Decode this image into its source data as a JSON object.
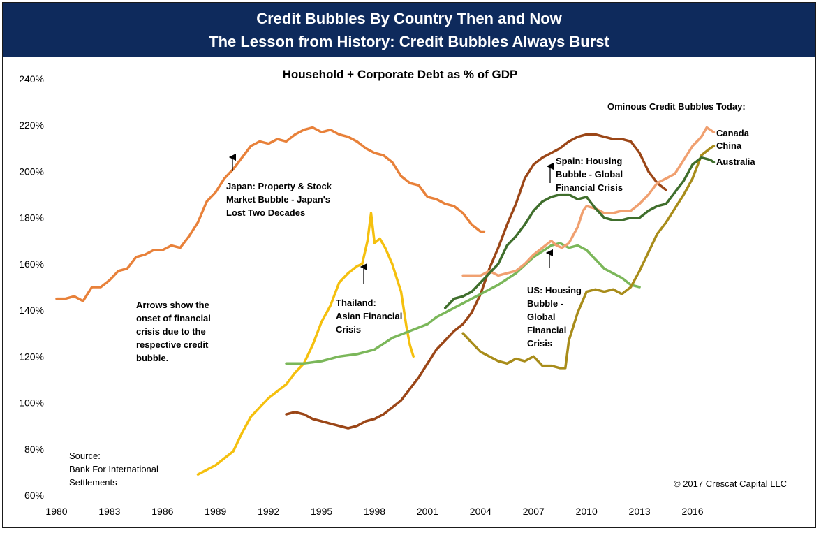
{
  "header": {
    "line1": "Credit Bubbles By Country Then and Now",
    "line2": "The Lesson from History: Credit Bubbles Always Burst"
  },
  "chart_data": {
    "type": "line",
    "title": "Household + Corporate Debt as % of GDP",
    "xlabel": "",
    "ylabel": "",
    "xlim": [
      1980,
      2017.5
    ],
    "ylim": [
      60,
      240
    ],
    "x_ticks": [
      "1980",
      "1983",
      "1986",
      "1989",
      "1992",
      "1995",
      "1998",
      "2001",
      "2004",
      "2007",
      "2010",
      "2013",
      "2016"
    ],
    "y_ticks": [
      "60%",
      "80%",
      "100%",
      "120%",
      "140%",
      "160%",
      "180%",
      "200%",
      "220%",
      "240%"
    ],
    "grid": false,
    "legend": "none",
    "series": [
      {
        "name": "",
        "color": "#e8813a",
        "points": [
          [
            1980,
            145
          ],
          [
            1980.5,
            145
          ],
          [
            1981,
            146
          ],
          [
            1981.5,
            144
          ],
          [
            1982,
            150
          ],
          [
            1982.5,
            150
          ],
          [
            1983,
            153
          ],
          [
            1983.5,
            157
          ],
          [
            1984,
            158
          ],
          [
            1984.5,
            163
          ],
          [
            1985,
            164
          ],
          [
            1985.5,
            166
          ],
          [
            1986,
            166
          ],
          [
            1986.5,
            168
          ],
          [
            1987,
            167
          ],
          [
            1987.5,
            172
          ],
          [
            1988,
            178
          ],
          [
            1988.5,
            187
          ],
          [
            1989,
            191
          ],
          [
            1989.5,
            197
          ],
          [
            1990,
            201
          ],
          [
            1990.5,
            206
          ],
          [
            1991,
            211
          ],
          [
            1991.5,
            213
          ],
          [
            1992,
            212
          ],
          [
            1992.5,
            214
          ],
          [
            1993,
            213
          ],
          [
            1993.5,
            216
          ],
          [
            1994,
            218
          ],
          [
            1994.5,
            219
          ],
          [
            1995,
            217
          ],
          [
            1995.5,
            218
          ],
          [
            1996,
            216
          ],
          [
            1996.5,
            215
          ],
          [
            1997,
            213
          ],
          [
            1997.5,
            210
          ],
          [
            1998,
            208
          ],
          [
            1998.5,
            207
          ],
          [
            1999,
            204
          ],
          [
            1999.5,
            198
          ],
          [
            2000,
            195
          ],
          [
            2000.5,
            194
          ],
          [
            2001,
            189
          ],
          [
            2001.5,
            188
          ],
          [
            2002,
            186
          ],
          [
            2002.5,
            185
          ],
          [
            2003,
            182
          ],
          [
            2003.5,
            177
          ],
          [
            2004,
            174
          ],
          [
            2004.2,
            174
          ]
        ]
      },
      {
        "name": "",
        "color": "#f5c00e",
        "points": [
          [
            1988,
            69
          ],
          [
            1988.5,
            71
          ],
          [
            1989,
            73
          ],
          [
            1989.5,
            76
          ],
          [
            1990,
            79
          ],
          [
            1990.5,
            87
          ],
          [
            1991,
            94
          ],
          [
            1991.5,
            98
          ],
          [
            1992,
            102
          ],
          [
            1992.5,
            105
          ],
          [
            1993,
            108
          ],
          [
            1993.5,
            113
          ],
          [
            1994,
            117
          ],
          [
            1994.5,
            125
          ],
          [
            1995,
            135
          ],
          [
            1995.5,
            142
          ],
          [
            1996,
            152
          ],
          [
            1996.5,
            156
          ],
          [
            1997,
            159
          ],
          [
            1997.3,
            160
          ],
          [
            1997.6,
            170
          ],
          [
            1997.8,
            182
          ],
          [
            1998,
            169
          ],
          [
            1998.3,
            171
          ],
          [
            1998.6,
            167
          ],
          [
            1999,
            160
          ],
          [
            1999.5,
            148
          ],
          [
            1999.8,
            133
          ],
          [
            2000,
            125
          ],
          [
            2000.2,
            120
          ]
        ]
      },
      {
        "name": "",
        "color": "#9b4617",
        "points": [
          [
            1993,
            95
          ],
          [
            1993.5,
            96
          ],
          [
            1994,
            95
          ],
          [
            1994.5,
            93
          ],
          [
            1995,
            92
          ],
          [
            1995.5,
            91
          ],
          [
            1996,
            90
          ],
          [
            1996.5,
            89
          ],
          [
            1997,
            90
          ],
          [
            1997.5,
            92
          ],
          [
            1998,
            93
          ],
          [
            1998.5,
            95
          ],
          [
            1999,
            98
          ],
          [
            1999.5,
            101
          ],
          [
            2000,
            106
          ],
          [
            2000.5,
            111
          ],
          [
            2001,
            117
          ],
          [
            2001.5,
            123
          ],
          [
            2002,
            127
          ],
          [
            2002.5,
            131
          ],
          [
            2003,
            134
          ],
          [
            2003.5,
            139
          ],
          [
            2004,
            147
          ],
          [
            2004.5,
            158
          ],
          [
            2005,
            167
          ],
          [
            2005.5,
            177
          ],
          [
            2006,
            186
          ],
          [
            2006.5,
            197
          ],
          [
            2007,
            203
          ],
          [
            2007.5,
            206
          ],
          [
            2008,
            208
          ],
          [
            2008.5,
            210
          ],
          [
            2009,
            213
          ],
          [
            2009.5,
            215
          ],
          [
            2010,
            216
          ],
          [
            2010.5,
            216
          ],
          [
            2011,
            215
          ],
          [
            2011.5,
            214
          ],
          [
            2012,
            214
          ],
          [
            2012.5,
            213
          ],
          [
            2013,
            208
          ],
          [
            2013.5,
            200
          ],
          [
            2014,
            195
          ],
          [
            2014.5,
            192
          ]
        ]
      },
      {
        "name": "",
        "color": "#7bb75a",
        "points": [
          [
            1993,
            117
          ],
          [
            1994,
            117
          ],
          [
            1995,
            118
          ],
          [
            1996,
            120
          ],
          [
            1997,
            121
          ],
          [
            1998,
            123
          ],
          [
            1999,
            128
          ],
          [
            2000,
            131
          ],
          [
            2001,
            134
          ],
          [
            2001.5,
            137
          ],
          [
            2002,
            139
          ],
          [
            2003,
            143
          ],
          [
            2004,
            147
          ],
          [
            2005,
            151
          ],
          [
            2006,
            156
          ],
          [
            2007,
            163
          ],
          [
            2008,
            168
          ],
          [
            2008.5,
            169
          ],
          [
            2009,
            167
          ],
          [
            2009.5,
            168
          ],
          [
            2010,
            166
          ],
          [
            2010.5,
            162
          ],
          [
            2011,
            158
          ],
          [
            2012,
            154
          ],
          [
            2012.5,
            151
          ],
          [
            2013,
            150
          ]
        ]
      },
      {
        "name": "Canada",
        "color": "#f0a070",
        "points": [
          [
            2003,
            155
          ],
          [
            2003.5,
            155
          ],
          [
            2004,
            155
          ],
          [
            2004.5,
            157
          ],
          [
            2005,
            155
          ],
          [
            2005.5,
            156
          ],
          [
            2006,
            157
          ],
          [
            2006.5,
            160
          ],
          [
            2007,
            164
          ],
          [
            2007.5,
            167
          ],
          [
            2008,
            170
          ],
          [
            2008.3,
            168
          ],
          [
            2008.6,
            167
          ],
          [
            2009,
            169
          ],
          [
            2009.5,
            176
          ],
          [
            2009.8,
            183
          ],
          [
            2010,
            185
          ],
          [
            2010.5,
            184
          ],
          [
            2011,
            182
          ],
          [
            2011.5,
            182
          ],
          [
            2012,
            183
          ],
          [
            2012.5,
            183
          ],
          [
            2013,
            186
          ],
          [
            2013.5,
            190
          ],
          [
            2014,
            195
          ],
          [
            2014.5,
            197
          ],
          [
            2015,
            199
          ],
          [
            2015.5,
            205
          ],
          [
            2016,
            211
          ],
          [
            2016.5,
            215
          ],
          [
            2016.8,
            219
          ],
          [
            2017.2,
            217
          ]
        ]
      },
      {
        "name": "China",
        "color": "#a88c1a",
        "points": [
          [
            2003,
            130
          ],
          [
            2003.5,
            126
          ],
          [
            2004,
            122
          ],
          [
            2004.5,
            120
          ],
          [
            2005,
            118
          ],
          [
            2005.5,
            117
          ],
          [
            2006,
            119
          ],
          [
            2006.5,
            118
          ],
          [
            2007,
            120
          ],
          [
            2007.5,
            116
          ],
          [
            2008,
            116
          ],
          [
            2008.5,
            115
          ],
          [
            2008.8,
            115
          ],
          [
            2009,
            127
          ],
          [
            2009.5,
            139
          ],
          [
            2010,
            148
          ],
          [
            2010.5,
            149
          ],
          [
            2011,
            148
          ],
          [
            2011.5,
            149
          ],
          [
            2012,
            147
          ],
          [
            2012.5,
            150
          ],
          [
            2013,
            157
          ],
          [
            2013.5,
            165
          ],
          [
            2014,
            173
          ],
          [
            2014.5,
            178
          ],
          [
            2015,
            184
          ],
          [
            2015.5,
            190
          ],
          [
            2016,
            197
          ],
          [
            2016.5,
            207
          ],
          [
            2017,
            210
          ],
          [
            2017.2,
            211
          ]
        ]
      },
      {
        "name": "Australia",
        "color": "#3f6e2c",
        "points": [
          [
            2002,
            141
          ],
          [
            2002.5,
            145
          ],
          [
            2003,
            146
          ],
          [
            2003.5,
            148
          ],
          [
            2004,
            152
          ],
          [
            2004.5,
            156
          ],
          [
            2005,
            160
          ],
          [
            2005.5,
            168
          ],
          [
            2006,
            172
          ],
          [
            2006.5,
            177
          ],
          [
            2007,
            183
          ],
          [
            2007.5,
            187
          ],
          [
            2008,
            189
          ],
          [
            2008.5,
            190
          ],
          [
            2009,
            190
          ],
          [
            2009.5,
            188
          ],
          [
            2010,
            189
          ],
          [
            2010.5,
            184
          ],
          [
            2011,
            180
          ],
          [
            2011.5,
            179
          ],
          [
            2012,
            179
          ],
          [
            2012.5,
            180
          ],
          [
            2013,
            180
          ],
          [
            2013.5,
            183
          ],
          [
            2014,
            185
          ],
          [
            2014.5,
            186
          ],
          [
            2015,
            191
          ],
          [
            2015.5,
            196
          ],
          [
            2016,
            203
          ],
          [
            2016.5,
            206
          ],
          [
            2017,
            205
          ],
          [
            2017.2,
            204
          ]
        ]
      }
    ],
    "annotations": {
      "japan": [
        "Japan: Property & Stock",
        "Market Bubble - Japan's",
        "Lost Two Decades"
      ],
      "thailand": [
        "Thailand:",
        "Asian Financial",
        "Crisis"
      ],
      "spain": [
        "Spain: Housing",
        "Bubble - Global",
        "Financial Crisis"
      ],
      "us": [
        "US: Housing",
        "Bubble -",
        "Global",
        "Financial",
        "Crisis"
      ],
      "arrows_note": [
        "Arrows show the",
        "onset of financial",
        "crisis due to the",
        "respective credit",
        "bubble."
      ],
      "today_header": "Ominous Credit Bubbles Today:",
      "source": [
        "Source:",
        "Bank For International",
        "Settlements"
      ],
      "copyright": "© 2017 Crescat Capital LLC"
    }
  }
}
